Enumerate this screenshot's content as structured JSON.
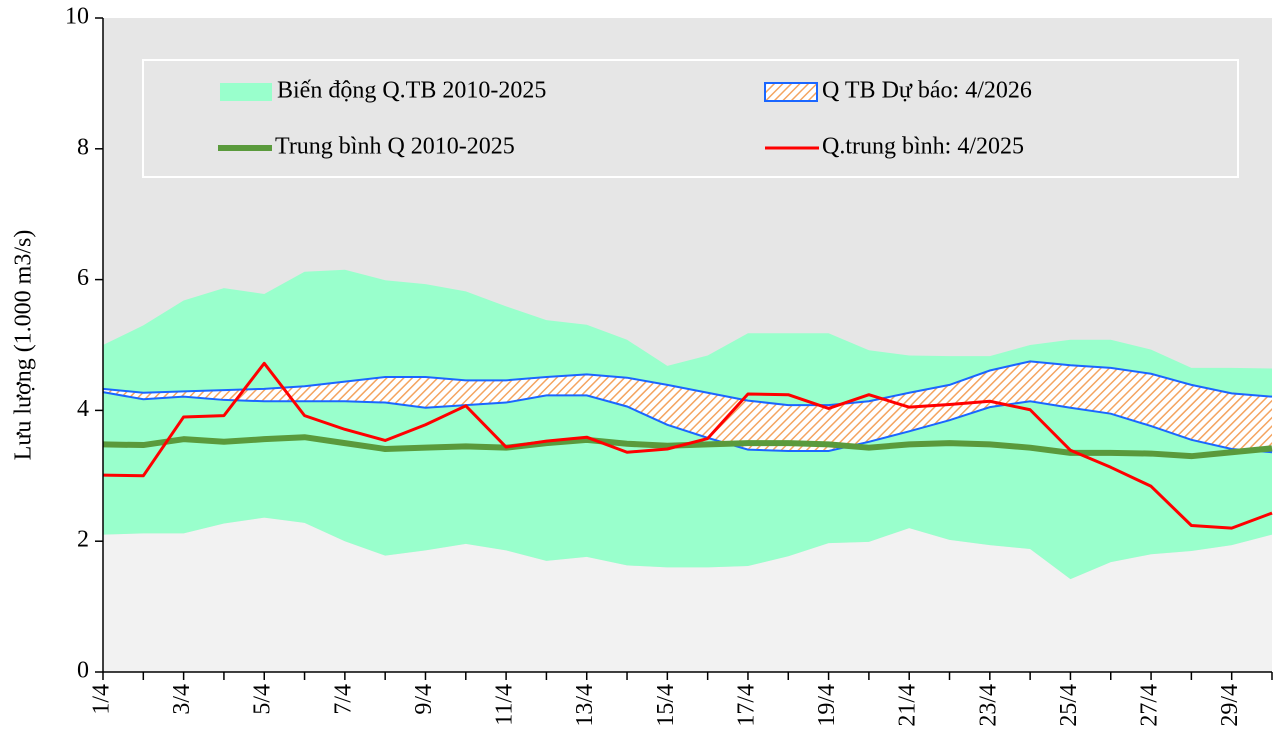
{
  "chart_data": {
    "type": "line",
    "ylabel": "Lưu lượng (1.000 m3/s)",
    "categories": [
      "1/4",
      null,
      "3/4",
      null,
      "5/4",
      null,
      "7/4",
      null,
      "9/4",
      null,
      "11/4",
      null,
      "13/4",
      null,
      "15/4",
      null,
      "17/4",
      null,
      "19/4",
      null,
      "21/4",
      null,
      "23/4",
      null,
      "25/4",
      null,
      "27/4",
      null,
      "29/4",
      null
    ],
    "ylim": [
      0,
      10
    ],
    "yticks": [
      0,
      2,
      4,
      6,
      8,
      10
    ],
    "series": [
      {
        "name": "Biến động Q.TB 2010-2025",
        "type": "band",
        "color": "#99ffcc",
        "upper": [
          5.0,
          5.3,
          5.68,
          5.87,
          5.78,
          6.12,
          6.15,
          5.99,
          5.93,
          5.82,
          5.59,
          5.38,
          5.31,
          5.08,
          4.68,
          4.84,
          5.18,
          5.18,
          5.18,
          4.92,
          4.84,
          4.83,
          4.83,
          5.0,
          5.08,
          5.08,
          4.93,
          4.65,
          4.65,
          4.64
        ],
        "lower": [
          2.1,
          2.12,
          2.12,
          2.27,
          2.36,
          2.28,
          2.0,
          1.78,
          1.86,
          1.96,
          1.86,
          1.7,
          1.76,
          1.63,
          1.6,
          1.6,
          1.62,
          1.77,
          1.97,
          1.99,
          2.2,
          2.02,
          1.94,
          1.88,
          1.42,
          1.68,
          1.8,
          1.85,
          1.94,
          2.1
        ]
      },
      {
        "name": "Q TB Dự báo: 4/2026",
        "type": "band",
        "color": "#1a66ff",
        "fill": "#f4a460",
        "upper": [
          4.33,
          4.27,
          4.29,
          4.31,
          4.33,
          4.37,
          4.44,
          4.51,
          4.51,
          4.46,
          4.46,
          4.51,
          4.55,
          4.5,
          4.39,
          4.27,
          4.15,
          4.08,
          4.08,
          4.14,
          4.27,
          4.39,
          4.61,
          4.75,
          4.69,
          4.65,
          4.56,
          4.39,
          4.26,
          4.21
        ],
        "lower": [
          4.28,
          4.17,
          4.21,
          4.16,
          4.14,
          4.14,
          4.14,
          4.12,
          4.04,
          4.08,
          4.12,
          4.23,
          4.23,
          4.06,
          3.78,
          3.58,
          3.4,
          3.38,
          3.38,
          3.52,
          3.68,
          3.85,
          4.05,
          4.14,
          4.04,
          3.95,
          3.76,
          3.55,
          3.41,
          3.36
        ]
      },
      {
        "name": "Trung bình Q 2010-2025",
        "type": "line",
        "color": "#5a9a3c",
        "width": 6,
        "values": [
          3.48,
          3.47,
          3.56,
          3.52,
          3.56,
          3.59,
          3.5,
          3.41,
          3.43,
          3.45,
          3.43,
          3.5,
          3.55,
          3.49,
          3.46,
          3.48,
          3.5,
          3.5,
          3.48,
          3.43,
          3.48,
          3.5,
          3.48,
          3.43,
          3.35,
          3.35,
          3.34,
          3.3,
          3.36,
          3.42
        ]
      },
      {
        "name": "Q.trung bình: 4/2025",
        "type": "line",
        "color": "#ff0000",
        "width": 3,
        "values": [
          3.01,
          3.0,
          3.9,
          3.92,
          4.72,
          3.92,
          3.71,
          3.54,
          3.78,
          4.07,
          3.44,
          3.53,
          3.59,
          3.36,
          3.41,
          3.57,
          4.25,
          4.24,
          4.03,
          4.24,
          4.05,
          4.09,
          4.14,
          4.01,
          3.39,
          3.13,
          2.84,
          2.24,
          2.2,
          2.43
        ]
      }
    ]
  }
}
